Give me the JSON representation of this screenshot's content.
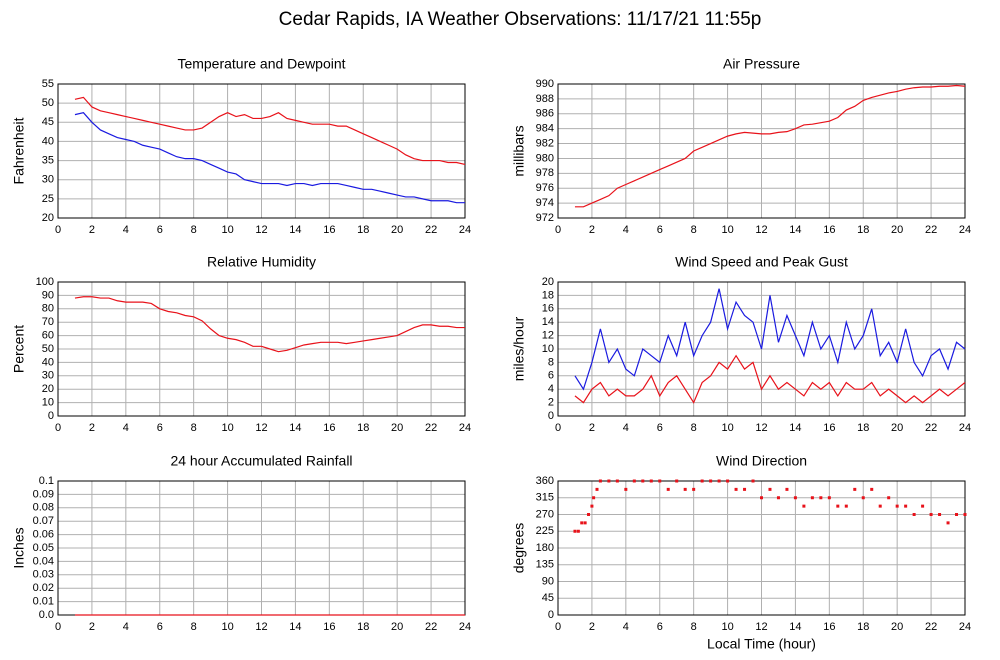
{
  "title": "Cedar Rapids, IA Weather Observations: 11/17/21 11:55p",
  "chart_data": [
    {
      "type": "line",
      "title": "Temperature and Dewpoint",
      "ylabel": "Fahrenheit",
      "grid": true,
      "xlim": [
        0,
        24
      ],
      "xticks": [
        0,
        2,
        4,
        6,
        8,
        10,
        12,
        14,
        16,
        18,
        20,
        22,
        24
      ],
      "ylim": [
        20,
        55
      ],
      "yticks": [
        20,
        25,
        30,
        35,
        40,
        45,
        50,
        55
      ],
      "x": [
        1,
        1.5,
        2,
        2.5,
        3,
        3.5,
        4,
        4.5,
        5,
        5.5,
        6,
        6.5,
        7,
        7.5,
        8,
        8.5,
        9,
        9.5,
        10,
        10.5,
        11,
        11.5,
        12,
        12.5,
        13,
        13.5,
        14,
        14.5,
        15,
        15.5,
        16,
        16.5,
        17,
        17.5,
        18,
        18.5,
        19,
        19.5,
        20,
        20.5,
        21,
        21.5,
        22,
        22.5,
        23,
        23.5,
        24
      ],
      "series": [
        {
          "color": "#e8121a",
          "values": [
            51,
            51.5,
            49,
            48,
            47.5,
            47,
            46.5,
            46,
            45.5,
            45,
            44.5,
            44,
            43.5,
            43,
            43,
            43.5,
            45,
            46.5,
            47.5,
            46.5,
            47,
            46,
            46,
            46.5,
            47.5,
            46,
            45.5,
            45,
            44.5,
            44.5,
            44.5,
            44,
            44,
            43,
            42,
            41,
            40,
            39,
            38,
            36.5,
            35.5,
            35,
            35,
            35,
            34.5,
            34.5,
            34
          ]
        },
        {
          "color": "#1a1ae0",
          "values": [
            47,
            47.5,
            45,
            43,
            42,
            41,
            40.5,
            40,
            39,
            38.5,
            38,
            37,
            36,
            35.5,
            35.5,
            35,
            34,
            33,
            32,
            31.5,
            30,
            29.5,
            29,
            29,
            29,
            28.5,
            29,
            29,
            28.5,
            29,
            29,
            29,
            28.5,
            28,
            27.5,
            27.5,
            27,
            26.5,
            26,
            25.5,
            25.5,
            25,
            24.5,
            24.5,
            24.5,
            24,
            24
          ]
        }
      ]
    },
    {
      "type": "line",
      "title": "Air Pressure",
      "ylabel": "millibars",
      "grid": true,
      "xlim": [
        0,
        24
      ],
      "xticks": [
        0,
        2,
        4,
        6,
        8,
        10,
        12,
        14,
        16,
        18,
        20,
        22,
        24
      ],
      "ylim": [
        972,
        990
      ],
      "yticks": [
        972,
        974,
        976,
        978,
        980,
        982,
        984,
        986,
        988,
        990
      ],
      "x": [
        1,
        1.5,
        2,
        2.5,
        3,
        3.5,
        4,
        4.5,
        5,
        5.5,
        6,
        6.5,
        7,
        7.5,
        8,
        8.5,
        9,
        9.5,
        10,
        10.5,
        11,
        11.5,
        12,
        12.5,
        13,
        13.5,
        14,
        14.5,
        15,
        15.5,
        16,
        16.5,
        17,
        17.5,
        18,
        18.5,
        19,
        19.5,
        20,
        20.5,
        21,
        21.5,
        22,
        22.5,
        23,
        23.5,
        24
      ],
      "series": [
        {
          "color": "#e8121a",
          "values": [
            973.5,
            973.5,
            974,
            974.5,
            975,
            976,
            976.5,
            977,
            977.5,
            978,
            978.5,
            979,
            979.5,
            980,
            981,
            981.5,
            982,
            982.5,
            983,
            983.3,
            983.5,
            983.4,
            983.3,
            983.3,
            983.5,
            983.6,
            984,
            984.5,
            984.6,
            984.8,
            985,
            985.5,
            986.5,
            987,
            987.8,
            988.2,
            988.5,
            988.8,
            989,
            989.3,
            989.5,
            989.6,
            989.6,
            989.7,
            989.7,
            989.8,
            989.7
          ]
        }
      ]
    },
    {
      "type": "line",
      "title": "Relative Humidity",
      "ylabel": "Percent",
      "grid": true,
      "xlim": [
        0,
        24
      ],
      "xticks": [
        0,
        2,
        4,
        6,
        8,
        10,
        12,
        14,
        16,
        18,
        20,
        22,
        24
      ],
      "ylim": [
        0,
        100
      ],
      "yticks": [
        0,
        10,
        20,
        30,
        40,
        50,
        60,
        70,
        80,
        90,
        100
      ],
      "x": [
        1,
        1.5,
        2,
        2.5,
        3,
        3.5,
        4,
        4.5,
        5,
        5.5,
        6,
        6.5,
        7,
        7.5,
        8,
        8.5,
        9,
        9.5,
        10,
        10.5,
        11,
        11.5,
        12,
        12.5,
        13,
        13.5,
        14,
        14.5,
        15,
        15.5,
        16,
        16.5,
        17,
        17.5,
        18,
        18.5,
        19,
        19.5,
        20,
        20.5,
        21,
        21.5,
        22,
        22.5,
        23,
        23.5,
        24
      ],
      "series": [
        {
          "color": "#e8121a",
          "values": [
            88,
            89,
            89,
            88,
            88,
            86,
            85,
            85,
            85,
            84,
            80,
            78,
            77,
            75,
            74,
            71,
            65,
            60,
            58,
            57,
            55,
            52,
            52,
            50,
            48,
            49,
            51,
            53,
            54,
            55,
            55,
            55,
            54,
            55,
            56,
            57,
            58,
            59,
            60,
            63,
            66,
            68,
            68,
            67,
            67,
            66,
            66
          ]
        }
      ]
    },
    {
      "type": "line",
      "title": "Wind Speed and Peak Gust",
      "ylabel": "miles/hour",
      "grid": true,
      "xlim": [
        0,
        24
      ],
      "xticks": [
        0,
        2,
        4,
        6,
        8,
        10,
        12,
        14,
        16,
        18,
        20,
        22,
        24
      ],
      "ylim": [
        0,
        20
      ],
      "yticks": [
        0,
        2,
        4,
        6,
        8,
        10,
        12,
        14,
        16,
        18,
        20
      ],
      "x": [
        1,
        1.5,
        2,
        2.5,
        3,
        3.5,
        4,
        4.5,
        5,
        5.5,
        6,
        6.5,
        7,
        7.5,
        8,
        8.5,
        9,
        9.5,
        10,
        10.5,
        11,
        11.5,
        12,
        12.5,
        13,
        13.5,
        14,
        14.5,
        15,
        15.5,
        16,
        16.5,
        17,
        17.5,
        18,
        18.5,
        19,
        19.5,
        20,
        20.5,
        21,
        21.5,
        22,
        22.5,
        23,
        23.5,
        24
      ],
      "series": [
        {
          "color": "#1a1ae0",
          "values": [
            6,
            4,
            8,
            13,
            8,
            10,
            7,
            6,
            10,
            9,
            8,
            12,
            9,
            14,
            9,
            12,
            14,
            19,
            13,
            17,
            15,
            14,
            10,
            18,
            11,
            15,
            12,
            9,
            14,
            10,
            12,
            8,
            14,
            10,
            12,
            16,
            9,
            11,
            8,
            13,
            8,
            6,
            9,
            10,
            7,
            11,
            10
          ]
        },
        {
          "color": "#e8121a",
          "values": [
            3,
            2,
            4,
            5,
            3,
            4,
            3,
            3,
            4,
            6,
            3,
            5,
            6,
            4,
            2,
            5,
            6,
            8,
            7,
            9,
            7,
            8,
            4,
            6,
            4,
            5,
            4,
            3,
            5,
            4,
            5,
            3,
            5,
            4,
            4,
            5,
            3,
            4,
            3,
            2,
            3,
            2,
            3,
            4,
            3,
            4,
            5
          ]
        }
      ]
    },
    {
      "type": "line",
      "title": "24 hour Accumulated Rainfall",
      "ylabel": "Inches",
      "grid": true,
      "xlim": [
        0,
        24
      ],
      "xticks": [
        0,
        2,
        4,
        6,
        8,
        10,
        12,
        14,
        16,
        18,
        20,
        22,
        24
      ],
      "ylim": [
        0,
        0.1
      ],
      "yticks": [
        {
          "value": 0,
          "label": "0.0"
        },
        0.01,
        0.02,
        0.03,
        0.04,
        0.05,
        0.06,
        0.07,
        0.08,
        0.09,
        0.1
      ],
      "x": [
        1,
        24
      ],
      "series": [
        {
          "color": "#e8121a",
          "values": [
            0,
            0
          ]
        }
      ]
    },
    {
      "type": "scatter",
      "title": "Wind Direction",
      "ylabel": "degrees",
      "xlabel": "Local Time (hour)",
      "grid": true,
      "xlim": [
        0,
        24
      ],
      "xticks": [
        0,
        2,
        4,
        6,
        8,
        10,
        12,
        14,
        16,
        18,
        20,
        22,
        24
      ],
      "ylim": [
        0,
        360
      ],
      "yticks": [
        0,
        45,
        90,
        135,
        180,
        225,
        270,
        315,
        360
      ],
      "x": [
        1,
        1.2,
        1.4,
        1.6,
        1.8,
        2,
        2.1,
        2.3,
        2.5,
        3,
        3.5,
        4,
        4.5,
        5,
        5.5,
        6,
        6.5,
        7,
        7.5,
        8,
        8.5,
        9,
        9.5,
        10,
        10.5,
        11,
        11.5,
        12,
        12.5,
        13,
        13.5,
        14,
        14.5,
        15,
        15.5,
        16,
        16.5,
        17,
        17.5,
        18,
        18.5,
        19,
        19.5,
        20,
        20.5,
        21,
        21.5,
        22,
        22.5,
        23,
        23.5,
        24
      ],
      "series": [
        {
          "color": "#e8121a",
          "values": [
            225,
            225,
            247.5,
            247.5,
            270,
            292.5,
            315,
            337.5,
            360,
            360,
            360,
            337.5,
            360,
            360,
            360,
            360,
            337.5,
            360,
            337.5,
            337.5,
            360,
            360,
            360,
            360,
            337.5,
            337.5,
            360,
            315,
            337.5,
            315,
            337.5,
            315,
            292.5,
            315,
            315,
            315,
            292.5,
            292.5,
            337.5,
            315,
            337.5,
            292.5,
            315,
            292.5,
            292.5,
            270,
            292.5,
            270,
            270,
            247.5,
            270,
            270
          ]
        }
      ]
    }
  ]
}
